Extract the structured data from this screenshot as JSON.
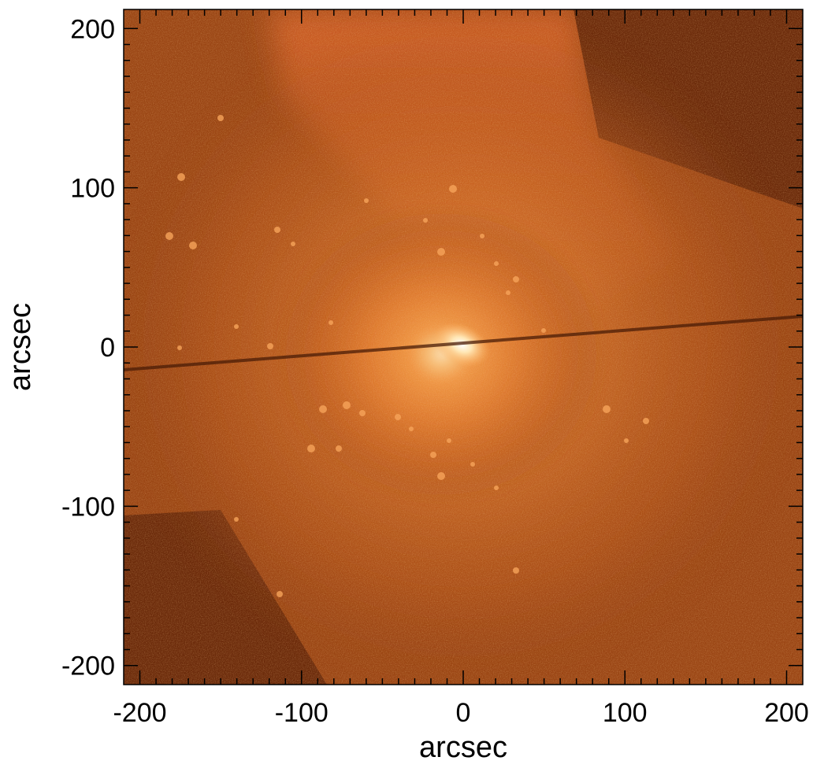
{
  "image": {
    "description_colormap": "orange-brown",
    "colors": {
      "background_dark": "#6b2a0a",
      "background_mid": "#9a4514",
      "halo": "#e0722a",
      "core": "#fff4dc",
      "axes": "#000000"
    }
  },
  "axes": {
    "xlabel": "arcsec",
    "ylabel": "arcsec",
    "xlim": [
      -210,
      210
    ],
    "ylim": [
      -212,
      212
    ],
    "x_ticks": [
      {
        "value": -200,
        "label": "-200"
      },
      {
        "value": -100,
        "label": "-100"
      },
      {
        "value": 0,
        "label": "0"
      },
      {
        "value": 100,
        "label": "100"
      },
      {
        "value": 200,
        "label": "200"
      }
    ],
    "y_ticks": [
      {
        "value": 200,
        "label": "200"
      },
      {
        "value": 100,
        "label": "100"
      },
      {
        "value": 0,
        "label": "0"
      },
      {
        "value": -100,
        "label": "-100"
      },
      {
        "value": -200,
        "label": "-200"
      }
    ]
  }
}
